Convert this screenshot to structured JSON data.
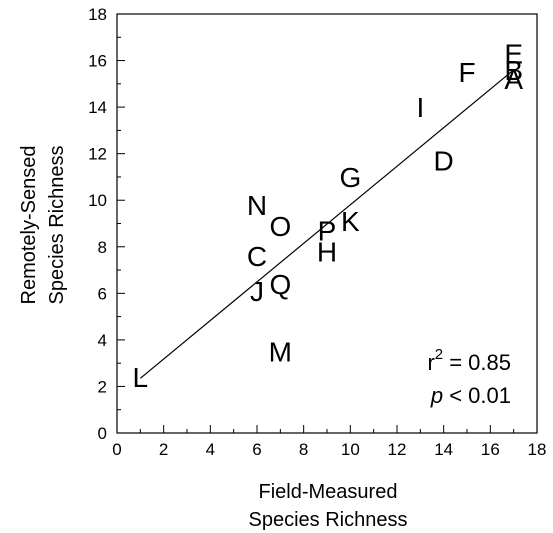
{
  "chart_data": {
    "type": "scatter",
    "xlabel": [
      "Field-Measured",
      "Species Richness"
    ],
    "ylabel": [
      "Remotely-Sensed",
      "Species Richness"
    ],
    "xlim": [
      0,
      18
    ],
    "ylim": [
      0,
      18
    ],
    "xticks": [
      0,
      2,
      4,
      6,
      8,
      10,
      12,
      14,
      16,
      18
    ],
    "yticks": [
      0,
      2,
      4,
      6,
      8,
      10,
      12,
      14,
      16,
      18
    ],
    "minor_ticks": true,
    "grid": false,
    "points": [
      {
        "label": "A",
        "x": 17,
        "y": 15.2
      },
      {
        "label": "B",
        "x": 17,
        "y": 15.6
      },
      {
        "label": "C",
        "x": 6,
        "y": 7.6
      },
      {
        "label": "D",
        "x": 14,
        "y": 11.7
      },
      {
        "label": "E",
        "x": 17,
        "y": 16.3
      },
      {
        "label": "F",
        "x": 15,
        "y": 15.5
      },
      {
        "label": "G",
        "x": 10,
        "y": 11
      },
      {
        "label": "H",
        "x": 9,
        "y": 7.8
      },
      {
        "label": "I",
        "x": 13,
        "y": 14
      },
      {
        "label": "J",
        "x": 6,
        "y": 6.1
      },
      {
        "label": "K",
        "x": 10,
        "y": 9.1
      },
      {
        "label": "L",
        "x": 1,
        "y": 2.4
      },
      {
        "label": "M",
        "x": 7,
        "y": 3.5
      },
      {
        "label": "N",
        "x": 6,
        "y": 9.8
      },
      {
        "label": "O",
        "x": 7,
        "y": 8.9
      },
      {
        "label": "P",
        "x": 9,
        "y": 8.7
      },
      {
        "label": "Q",
        "x": 7,
        "y": 6.4
      }
    ],
    "regression_line": {
      "x1": 1,
      "y1": 2.35,
      "x2": 17,
      "y2": 15.6
    },
    "annotations": {
      "r2_base": "r",
      "r2_sup": "2",
      "r2_value": " = 0.85",
      "p_symbol": "p",
      "p_value": " < 0.01"
    }
  }
}
